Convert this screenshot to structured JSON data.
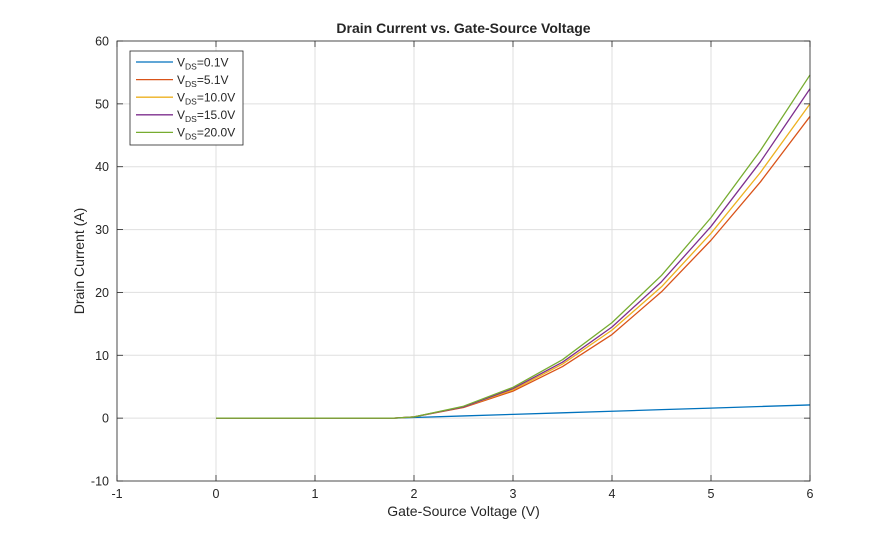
{
  "chart_data": {
    "type": "line",
    "title": "Drain Current vs. Gate-Source Voltage",
    "xlabel": "Gate-Source Voltage (V)",
    "ylabel": "Drain Current (A)",
    "xlim": [
      -1,
      6
    ],
    "ylim": [
      -10,
      60
    ],
    "xticks": [
      -1,
      0,
      1,
      2,
      3,
      4,
      5,
      6
    ],
    "yticks": [
      -10,
      0,
      10,
      20,
      30,
      40,
      50,
      60
    ],
    "grid": true,
    "legend_position": "top-left",
    "series": [
      {
        "name": "VDS=0.1V",
        "legend_main": "V",
        "legend_sub": "DS",
        "legend_value": "=0.1V",
        "color": "#0072BD",
        "x": [
          0,
          0.5,
          1.0,
          1.5,
          1.8,
          2.0,
          2.5,
          3.0,
          3.5,
          4.0,
          4.5,
          5.0,
          5.5,
          6.0
        ],
        "y": [
          0,
          0,
          0,
          0,
          0,
          0.1,
          0.35,
          0.6,
          0.85,
          1.1,
          1.35,
          1.6,
          1.85,
          2.1
        ]
      },
      {
        "name": "VDS=5.1V",
        "legend_main": "V",
        "legend_sub": "DS",
        "legend_value": "=5.1V",
        "color": "#D95319",
        "x": [
          0,
          0.5,
          1.0,
          1.5,
          1.8,
          2.0,
          2.5,
          3.0,
          3.5,
          4.0,
          4.5,
          5.0,
          5.5,
          6.0
        ],
        "y": [
          0,
          0,
          0,
          0,
          0,
          0.2,
          1.7,
          4.3,
          8.2,
          13.3,
          20.1,
          28.3,
          37.6,
          48.0
        ]
      },
      {
        "name": "VDS=10.0V",
        "legend_main": "V",
        "legend_sub": "DS",
        "legend_value": "=10.0V",
        "color": "#EDB120",
        "x": [
          0,
          0.5,
          1.0,
          1.5,
          1.8,
          2.0,
          2.5,
          3.0,
          3.5,
          4.0,
          4.5,
          5.0,
          5.5,
          6.0
        ],
        "y": [
          0,
          0,
          0,
          0,
          0,
          0.2,
          1.8,
          4.5,
          8.6,
          14.0,
          20.9,
          29.4,
          39.1,
          50.0
        ]
      },
      {
        "name": "VDS=15.0V",
        "legend_main": "V",
        "legend_sub": "DS",
        "legend_value": "=15.0V",
        "color": "#7E2F8E",
        "x": [
          0,
          0.5,
          1.0,
          1.5,
          1.8,
          2.0,
          2.5,
          3.0,
          3.5,
          4.0,
          4.5,
          5.0,
          5.5,
          6.0
        ],
        "y": [
          0,
          0,
          0,
          0,
          0,
          0.2,
          1.8,
          4.7,
          8.9,
          14.5,
          21.7,
          30.5,
          40.8,
          52.4
        ]
      },
      {
        "name": "VDS=20.0V",
        "legend_main": "V",
        "legend_sub": "DS",
        "legend_value": "=20.0V",
        "color": "#77AC30",
        "x": [
          0,
          0.5,
          1.0,
          1.5,
          1.8,
          2.0,
          2.5,
          3.0,
          3.5,
          4.0,
          4.5,
          5.0,
          5.5,
          6.0
        ],
        "y": [
          0,
          0,
          0,
          0,
          0,
          0.2,
          1.9,
          4.9,
          9.3,
          15.2,
          22.7,
          31.9,
          42.6,
          54.6
        ]
      }
    ]
  }
}
